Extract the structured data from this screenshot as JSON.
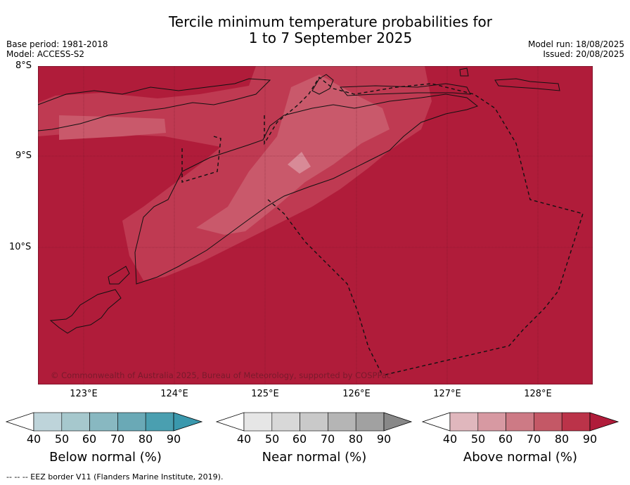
{
  "title_line1": "Tercile minimum temperature probabilities for",
  "title_line2": "1 to 7 September 2025",
  "base_period": "Base period: 1981-2018",
  "model": "Model: ACCESS-S2",
  "model_run": "Model run: 18/08/2025",
  "issued": "Issued: 20/08/2025",
  "lat_labels": [
    "8°S",
    "9°S",
    "10°S"
  ],
  "lon_labels": [
    "123°E",
    "124°E",
    "125°E",
    "126°E",
    "127°E",
    "128°E"
  ],
  "copyright": "© Commonwealth of Australia 2025, Bureau of Meteorology, supported by COSPPac",
  "footer": "-- -- -- EEZ border V11 (Flanders Marine Institute, 2019).",
  "colorbars": [
    {
      "label": "Below normal (%)",
      "ticks": [
        "40",
        "50",
        "60",
        "70",
        "80",
        "90"
      ],
      "colors": [
        "#bed4da",
        "#a6c8cd",
        "#88b8c1",
        "#6aa9b6",
        "#4a9fb0",
        "#3a98ad"
      ]
    },
    {
      "label": "Near normal (%)",
      "ticks": [
        "40",
        "50",
        "60",
        "70",
        "80",
        "90"
      ],
      "colors": [
        "#e6e6e6",
        "#d8d8d8",
        "#c9c9c9",
        "#b5b5b5",
        "#a1a1a1",
        "#888888"
      ]
    },
    {
      "label": "Above normal (%)",
      "ticks": [
        "40",
        "50",
        "60",
        "70",
        "80",
        "90"
      ],
      "colors": [
        "#e0b7bd",
        "#d799a2",
        "#cd7a85",
        "#c45866",
        "#bb3349",
        "#b01c3a"
      ]
    }
  ],
  "map_fill": {
    "dominant": "#b01c3a",
    "mid": "#bf3a52",
    "light": "#c9596b",
    "lightest": "#d88a97"
  }
}
